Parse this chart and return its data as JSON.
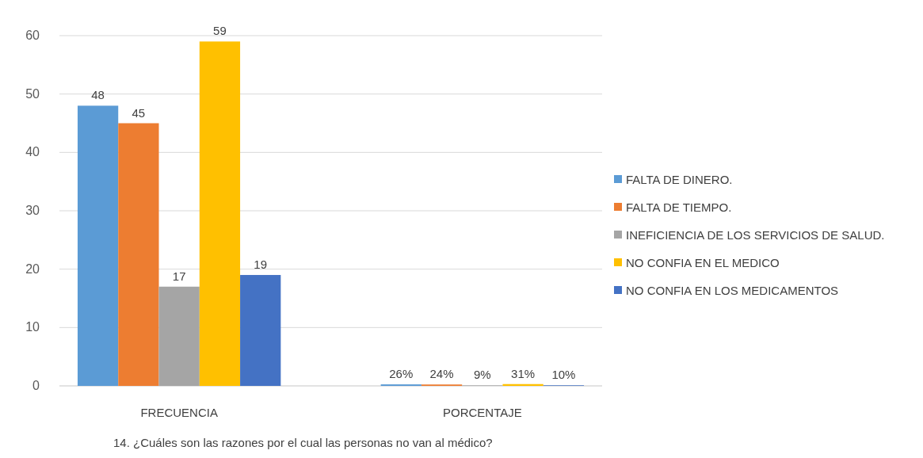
{
  "chart_data": {
    "type": "bar",
    "title": "14. ¿Cuáles son las razones por el cual las personas no van al médico?",
    "categories": [
      "FRECUENCIA",
      "PORCENTAJE"
    ],
    "ylim": [
      0,
      60
    ],
    "yticks": [
      0,
      10,
      20,
      30,
      40,
      50,
      60
    ],
    "grid": "y",
    "legend": "right",
    "series": [
      {
        "name": "FALTA DE DINERO.",
        "color": "#5b9bd5",
        "values": [
          48,
          0.26
        ],
        "value_labels": [
          "48",
          "26%"
        ]
      },
      {
        "name": "FALTA DE TIEMPO.",
        "color": "#ed7d31",
        "values": [
          45,
          0.24
        ],
        "value_labels": [
          "45",
          "24%"
        ]
      },
      {
        "name": "INEFICIENCIA DE LOS SERVICIOS DE SALUD.",
        "color": "#a5a5a5",
        "values": [
          17,
          0.09
        ],
        "value_labels": [
          "17",
          "9%"
        ]
      },
      {
        "name": "NO CONFIA EN EL MEDICO",
        "color": "#ffc000",
        "values": [
          59,
          0.31
        ],
        "value_labels": [
          "59",
          "31%"
        ]
      },
      {
        "name": "NO CONFIA EN LOS MEDICAMENTOS",
        "color": "#4472c4",
        "values": [
          19,
          0.1
        ],
        "value_labels": [
          "19",
          "10%"
        ]
      }
    ]
  }
}
